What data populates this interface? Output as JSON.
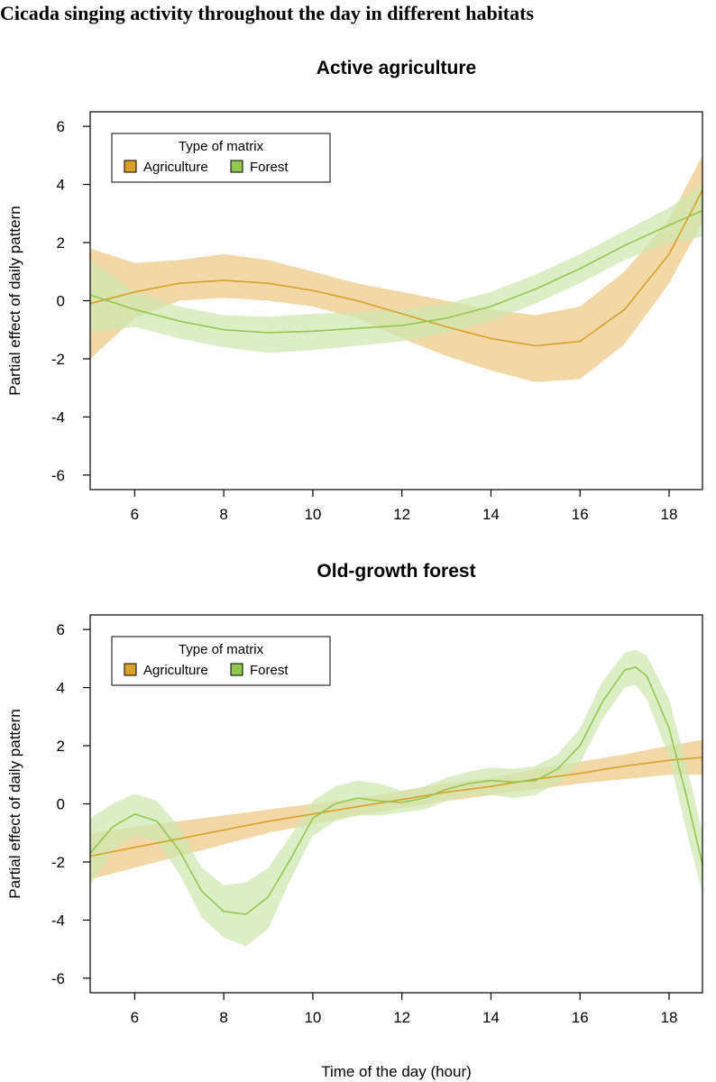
{
  "figure_title": "Cicada singing activity throughout the day in different habitats",
  "colors": {
    "agriculture_line": "#d9a02b",
    "agriculture_band": "#edc983",
    "forest_line": "#92c84e",
    "forest_band": "#cfe7b0"
  },
  "chart_data": [
    {
      "type": "line",
      "title": "Active agriculture",
      "xlabel": "",
      "ylabel": "Partial effect of daily pattern",
      "xlim": [
        5,
        18.75
      ],
      "ylim": [
        -6.5,
        6.5
      ],
      "xticks": [
        6,
        8,
        10,
        12,
        14,
        16,
        18
      ],
      "yticks": [
        -6,
        -4,
        -2,
        0,
        2,
        4,
        6
      ],
      "legend": {
        "title": "Type of matrix",
        "position": "top-left",
        "entries": [
          "Agriculture",
          "Forest"
        ]
      },
      "series": [
        {
          "name": "Agriculture",
          "x": [
            5,
            6,
            7,
            8,
            9,
            10,
            11,
            12,
            13,
            14,
            15,
            16,
            17,
            18,
            18.75
          ],
          "y": [
            -0.1,
            0.3,
            0.6,
            0.7,
            0.6,
            0.35,
            0.0,
            -0.45,
            -0.9,
            -1.3,
            -1.55,
            -1.4,
            -0.3,
            1.6,
            3.8
          ],
          "lower": [
            -2.0,
            -0.6,
            0.0,
            0.1,
            0.0,
            -0.2,
            -0.6,
            -1.3,
            -1.9,
            -2.4,
            -2.8,
            -2.7,
            -1.5,
            0.6,
            2.7
          ],
          "upper": [
            1.8,
            1.3,
            1.4,
            1.6,
            1.4,
            1.0,
            0.6,
            0.3,
            0.0,
            -0.3,
            -0.5,
            -0.2,
            1.0,
            2.8,
            5.0
          ]
        },
        {
          "name": "Forest",
          "x": [
            5,
            6,
            7,
            8,
            9,
            10,
            11,
            12,
            13,
            14,
            15,
            16,
            17,
            18,
            18.75
          ],
          "y": [
            0.2,
            -0.3,
            -0.7,
            -1.0,
            -1.1,
            -1.05,
            -0.95,
            -0.85,
            -0.6,
            -0.2,
            0.4,
            1.1,
            1.9,
            2.6,
            3.1
          ],
          "lower": [
            -1.1,
            -0.9,
            -1.3,
            -1.6,
            -1.8,
            -1.7,
            -1.55,
            -1.4,
            -1.1,
            -0.7,
            -0.1,
            0.6,
            1.4,
            2.0,
            2.2
          ],
          "upper": [
            1.4,
            0.3,
            -0.2,
            -0.5,
            -0.55,
            -0.45,
            -0.4,
            -0.3,
            -0.1,
            0.3,
            0.9,
            1.6,
            2.4,
            3.2,
            4.0
          ]
        }
      ]
    },
    {
      "type": "line",
      "title": "Old-growth forest",
      "xlabel": "Time of the day (hour)",
      "ylabel": "Partial effect of daily pattern",
      "xlim": [
        5,
        18.75
      ],
      "ylim": [
        -6.5,
        6.5
      ],
      "xticks": [
        6,
        8,
        10,
        12,
        14,
        16,
        18
      ],
      "yticks": [
        -6,
        -4,
        -2,
        0,
        2,
        4,
        6
      ],
      "legend": {
        "title": "Type of matrix",
        "position": "top-left",
        "entries": [
          "Agriculture",
          "Forest"
        ]
      },
      "series": [
        {
          "name": "Agriculture",
          "x": [
            5,
            6,
            7,
            8,
            9,
            10,
            11,
            12,
            13,
            14,
            15,
            16,
            17,
            18,
            18.75
          ],
          "y": [
            -1.8,
            -1.5,
            -1.2,
            -0.9,
            -0.6,
            -0.35,
            -0.1,
            0.15,
            0.4,
            0.6,
            0.85,
            1.05,
            1.3,
            1.5,
            1.6
          ],
          "lower": [
            -2.6,
            -2.2,
            -1.8,
            -1.4,
            -1.0,
            -0.7,
            -0.4,
            -0.15,
            0.1,
            0.3,
            0.5,
            0.7,
            0.85,
            1.0,
            1.0
          ],
          "upper": [
            -1.0,
            -0.8,
            -0.6,
            -0.4,
            -0.2,
            0.0,
            0.2,
            0.45,
            0.7,
            0.9,
            1.2,
            1.45,
            1.7,
            2.0,
            2.2
          ]
        },
        {
          "name": "Forest",
          "x": [
            5,
            5.5,
            6,
            6.5,
            7,
            7.5,
            8,
            8.5,
            9,
            9.5,
            10,
            10.5,
            11,
            11.5,
            12,
            12.5,
            13,
            13.5,
            14,
            14.5,
            15,
            15.5,
            16,
            16.5,
            17,
            17.25,
            17.5,
            18,
            18.4,
            18.75
          ],
          "y": [
            -1.7,
            -0.8,
            -0.35,
            -0.6,
            -1.6,
            -3.0,
            -3.7,
            -3.8,
            -3.2,
            -1.9,
            -0.5,
            0.0,
            0.2,
            0.1,
            0.05,
            0.2,
            0.5,
            0.7,
            0.8,
            0.75,
            0.8,
            1.2,
            2.0,
            3.5,
            4.6,
            4.7,
            4.4,
            2.6,
            0.2,
            -2.1
          ],
          "lower": [
            -2.8,
            -1.6,
            -1.1,
            -1.3,
            -2.4,
            -3.9,
            -4.6,
            -4.9,
            -4.3,
            -2.6,
            -1.1,
            -0.6,
            -0.4,
            -0.4,
            -0.3,
            -0.2,
            0.1,
            0.3,
            0.3,
            0.2,
            0.3,
            0.7,
            1.4,
            2.9,
            4.0,
            4.1,
            3.6,
            1.6,
            -1.0,
            -3.1
          ],
          "upper": [
            -0.5,
            0.0,
            0.35,
            0.1,
            -0.8,
            -2.2,
            -2.8,
            -2.7,
            -2.2,
            -1.1,
            0.1,
            0.6,
            0.8,
            0.7,
            0.45,
            0.6,
            0.9,
            1.1,
            1.25,
            1.2,
            1.3,
            1.7,
            2.6,
            4.2,
            5.2,
            5.3,
            5.1,
            3.6,
            1.3,
            -1.0
          ]
        }
      ]
    }
  ]
}
